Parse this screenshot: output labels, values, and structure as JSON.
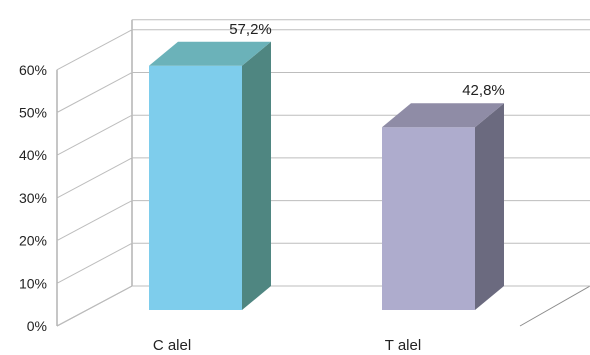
{
  "chart_data": {
    "type": "bar",
    "categories": [
      "C  alel",
      "T alel"
    ],
    "values": [
      57.2,
      42.8
    ],
    "data_labels": [
      "57,2%",
      "42,8%"
    ],
    "ylim": [
      0,
      60
    ],
    "yticks": [
      0,
      10,
      20,
      30,
      40,
      50,
      60
    ],
    "ytick_labels": [
      "0%",
      "10%",
      "20%",
      "30%",
      "40%",
      "50%",
      "60%"
    ],
    "grid": true,
    "style": "3d",
    "colors": [
      {
        "front": "#7ecdec",
        "side": "#4f8681",
        "top": "#6bb2b9"
      },
      {
        "front": "#aeaccd",
        "side": "#6b6a7f",
        "top": "#8f8ca6"
      }
    ],
    "grid_color": "#bdbdbd",
    "wall_color": "#8c8c8c"
  }
}
